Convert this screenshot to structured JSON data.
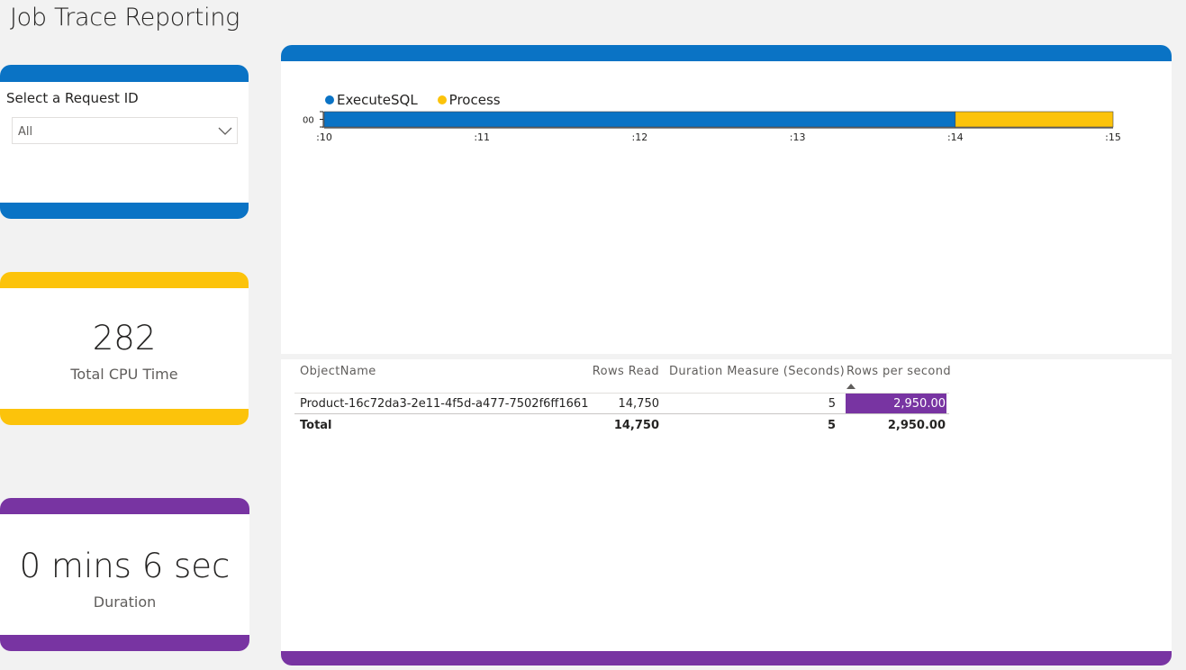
{
  "page_title": "Job Trace Reporting",
  "slicer": {
    "label": "Select a Request ID",
    "value": "All"
  },
  "cpu_card": {
    "value": "282",
    "label": "Total CPU Time",
    "accent": "#fcc30b"
  },
  "duration_card": {
    "value": "0 mins 6 sec",
    "label": "Duration",
    "accent": "#7834a2"
  },
  "colors": {
    "blue": "#0a73c5",
    "yellow": "#fcc30b",
    "purple": "#7834a2"
  },
  "chart_data": {
    "type": "bar",
    "orientation": "horizontal-stacked",
    "categories": [
      "00"
    ],
    "x_ticks": [
      ":10",
      ":11",
      ":12",
      ":13",
      ":14",
      ":15"
    ],
    "xlim": [
      10,
      15
    ],
    "series": [
      {
        "name": "ExecuteSQL",
        "start": 10,
        "end": 14,
        "color": "#0a73c5"
      },
      {
        "name": "Process",
        "start": 14,
        "end": 15,
        "color": "#fcc30b"
      }
    ],
    "legend": "top-left",
    "grid": false
  },
  "table": {
    "columns": [
      "ObjectName",
      "Rows Read",
      "Duration Measure (Seconds)",
      "Rows per second"
    ],
    "rows": [
      {
        "object": "Product-16c72da3-2e11-4f5d-a477-7502f6ff1661",
        "rows_read": "14,750",
        "duration": "5",
        "rps": "2,950.00"
      }
    ],
    "total": {
      "label": "Total",
      "rows_read": "14,750",
      "duration": "5",
      "rps": "2,950.00"
    }
  }
}
